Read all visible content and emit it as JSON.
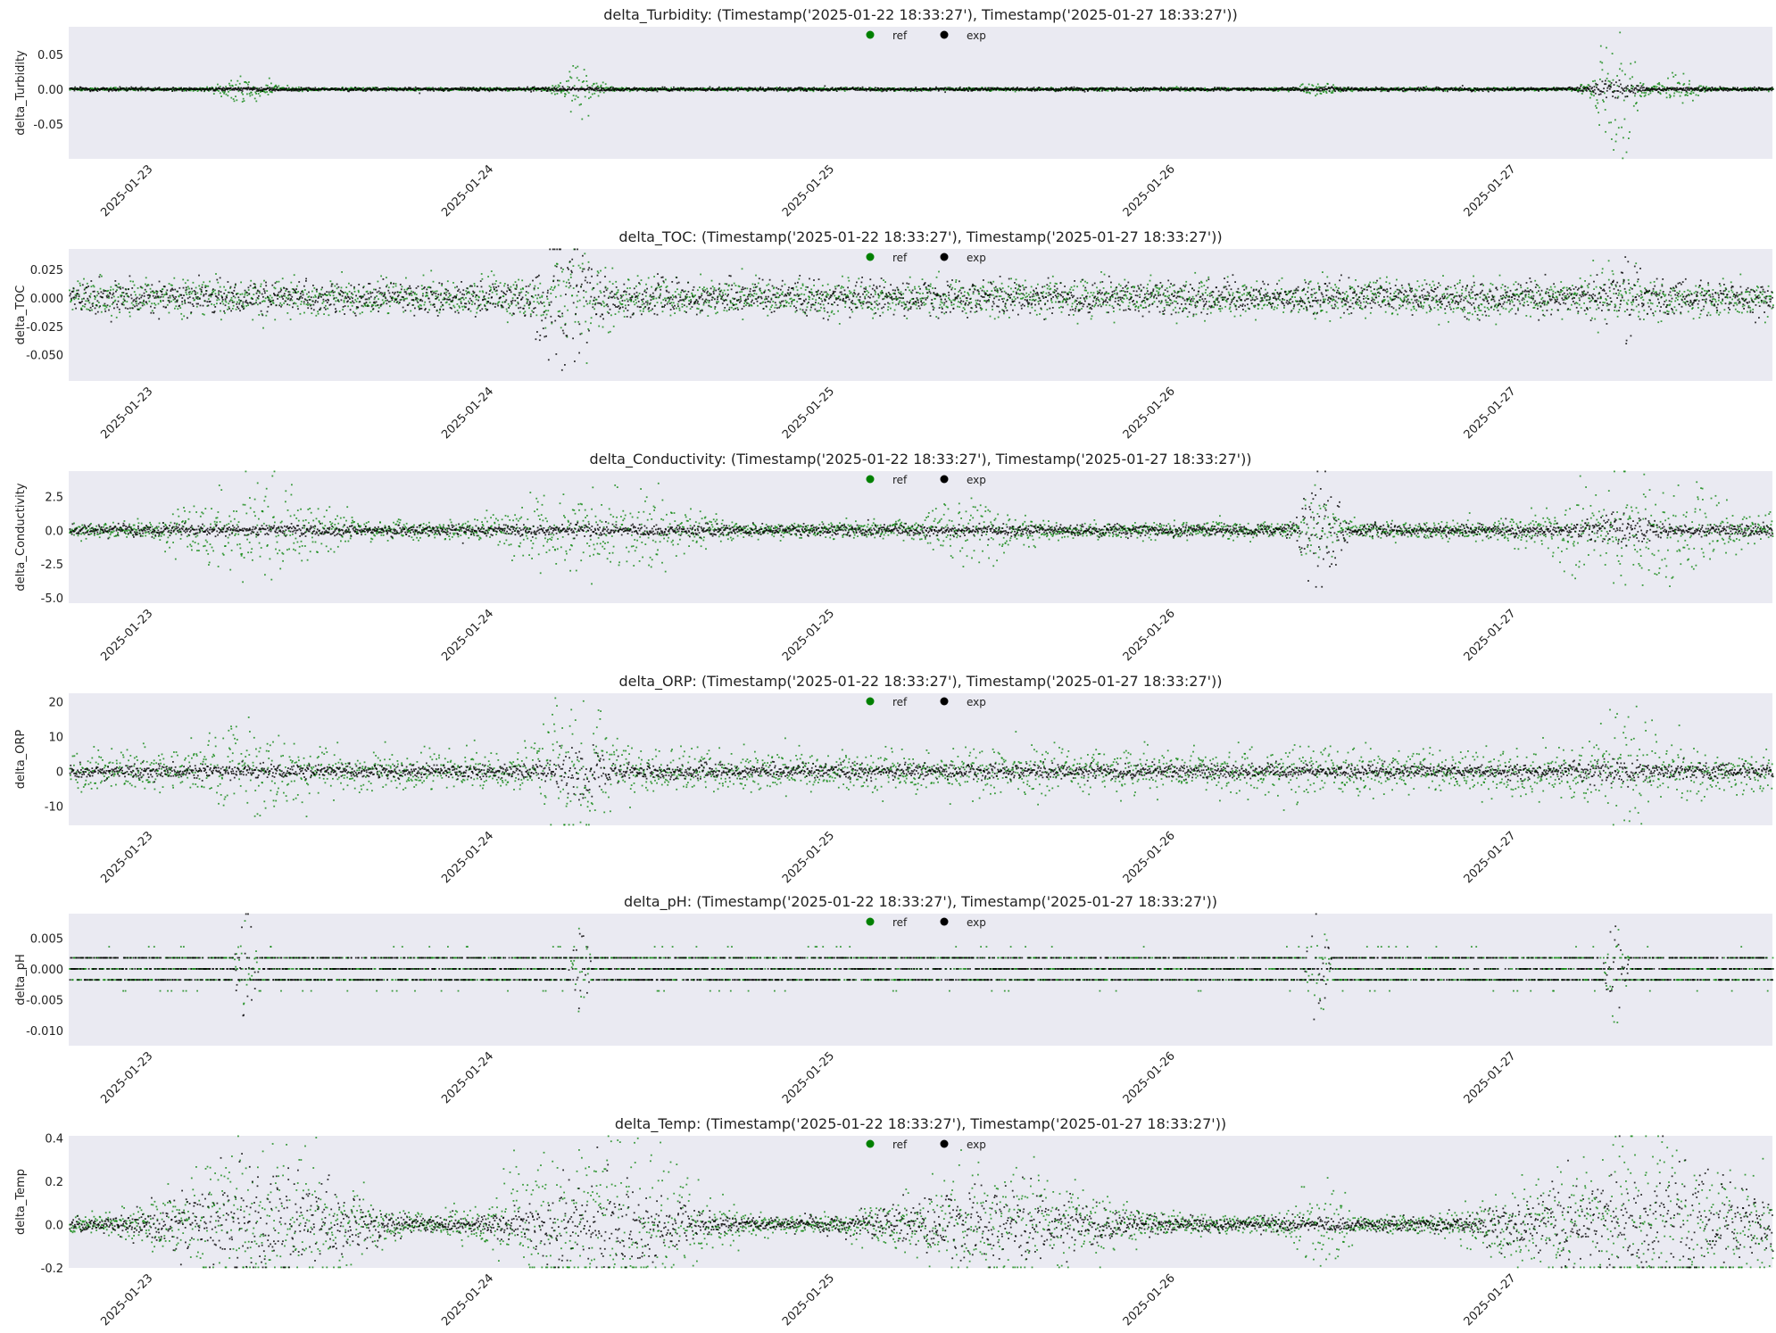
{
  "colors": {
    "ref": "#008000",
    "exp": "#000000",
    "panel_bg": "#eaeaf2"
  },
  "chart_data": [
    {
      "type": "scatter",
      "title": "delta_Turbidity: (Timestamp('2025-01-22 18:33:27'), Timestamp('2025-01-27 18:33:27'))",
      "ylabel": "delta_Turbidity",
      "xlim": [
        "2025-01-22T18:33:27",
        "2025-01-27T18:33:27"
      ],
      "ylim": [
        -0.1,
        0.09
      ],
      "yticks": [
        -0.05,
        0.0,
        0.05
      ],
      "ytick_labels": [
        "-0.05",
        "0.00",
        "0.05"
      ],
      "xtick_labels": [
        "2025-01-23",
        "2025-01-24",
        "2025-01-25",
        "2025-01-26",
        "2025-01-27"
      ],
      "legend": [
        "ref",
        "exp"
      ],
      "legend_position": "upper-center",
      "grid": false,
      "series": [
        {
          "name": "ref",
          "baseline": 0.0,
          "bursts": [
            {
              "t": "2025-01-23T07:00:00",
              "width_h": 3,
              "amp": 0.016
            },
            {
              "t": "2025-01-24T06:30:00",
              "width_h": 2,
              "amp": 0.035
            },
            {
              "t": "2025-01-26T10:30:00",
              "width_h": 2,
              "amp": 0.01
            },
            {
              "t": "2025-01-27T07:30:00",
              "width_h": 2,
              "amp": 0.09
            },
            {
              "t": "2025-01-27T12:00:00",
              "width_h": 2,
              "amp": 0.02
            }
          ],
          "noise": 0.001
        },
        {
          "name": "exp",
          "baseline": 0.0,
          "bursts": [
            {
              "t": "2025-01-27T07:30:00",
              "width_h": 3,
              "amp": 0.01
            }
          ],
          "noise": 0.0012
        }
      ]
    },
    {
      "type": "scatter",
      "title": "delta_TOC: (Timestamp('2025-01-22 18:33:27'), Timestamp('2025-01-27 18:33:27'))",
      "ylabel": "delta_TOC",
      "xlim": [
        "2025-01-22T18:33:27",
        "2025-01-27T18:33:27"
      ],
      "ylim": [
        -0.073,
        0.043
      ],
      "yticks": [
        -0.05,
        -0.025,
        0.0,
        0.025
      ],
      "ytick_labels": [
        "-0.050",
        "-0.025",
        "0.000",
        "0.025"
      ],
      "xtick_labels": [
        "2025-01-23",
        "2025-01-24",
        "2025-01-25",
        "2025-01-26",
        "2025-01-27"
      ],
      "legend": [
        "ref",
        "exp"
      ],
      "legend_position": "upper-center",
      "grid": false,
      "series": [
        {
          "name": "ref",
          "baseline": 0.0,
          "bursts": [
            {
              "t": "2025-01-24T06:30:00",
              "width_h": 3,
              "amp": 0.045
            },
            {
              "t": "2025-01-27T07:00:00",
              "width_h": 3,
              "amp": 0.02
            }
          ],
          "noise": 0.008
        },
        {
          "name": "exp",
          "baseline": 0.0,
          "bursts": [
            {
              "t": "2025-01-24T05:30:00",
              "width_h": 3,
              "amp": 0.07
            },
            {
              "t": "2025-01-27T08:00:00",
              "width_h": 2,
              "amp": 0.03
            }
          ],
          "noise": 0.007
        }
      ]
    },
    {
      "type": "scatter",
      "title": "delta_Conductivity: (Timestamp('2025-01-22 18:33:27'), Timestamp('2025-01-27 18:33:27'))",
      "ylabel": "delta_Conductivity",
      "xlim": [
        "2025-01-22T18:33:27",
        "2025-01-27T18:33:27"
      ],
      "ylim": [
        -5.4,
        4.4
      ],
      "yticks": [
        -5.0,
        -2.5,
        0.0,
        2.5
      ],
      "ytick_labels": [
        "-5.0",
        "-2.5",
        "0.0",
        "2.5"
      ],
      "xtick_labels": [
        "2025-01-23",
        "2025-01-24",
        "2025-01-25",
        "2025-01-26",
        "2025-01-27"
      ],
      "legend": [
        "ref",
        "exp"
      ],
      "legend_position": "upper-center",
      "grid": false,
      "series": [
        {
          "name": "ref",
          "baseline": 0.0,
          "bursts": [
            {
              "t": "2025-01-23T07:30:00",
              "width_h": 8,
              "amp": 3.5
            },
            {
              "t": "2025-01-24T08:00:00",
              "width_h": 10,
              "amp": 3.0
            },
            {
              "t": "2025-01-25T10:00:00",
              "width_h": 6,
              "amp": 2.0
            },
            {
              "t": "2025-01-26T10:30:00",
              "width_h": 2,
              "amp": 3.0
            },
            {
              "t": "2025-01-27T09:00:00",
              "width_h": 10,
              "amp": 3.5
            }
          ],
          "noise": 0.3
        },
        {
          "name": "exp",
          "baseline": 0.0,
          "bursts": [
            {
              "t": "2025-01-26T10:30:00",
              "width_h": 2,
              "amp": 4.5
            },
            {
              "t": "2025-01-27T07:30:00",
              "width_h": 4,
              "amp": 1.0
            }
          ],
          "noise": 0.2
        }
      ]
    },
    {
      "type": "scatter",
      "title": "delta_ORP: (Timestamp('2025-01-22 18:33:27'), Timestamp('2025-01-27 18:33:27'))",
      "ylabel": "delta_ORP",
      "xlim": [
        "2025-01-22T18:33:27",
        "2025-01-27T18:33:27"
      ],
      "ylim": [
        -15.5,
        22.5
      ],
      "yticks": [
        -10,
        0,
        10,
        20
      ],
      "ytick_labels": [
        "-10",
        "0",
        "10",
        "20"
      ],
      "xtick_labels": [
        "2025-01-23",
        "2025-01-24",
        "2025-01-25",
        "2025-01-26",
        "2025-01-27"
      ],
      "legend": [
        "ref",
        "exp"
      ],
      "legend_position": "upper-center",
      "grid": false,
      "series": [
        {
          "name": "ref",
          "baseline": 0.0,
          "bursts": [
            {
              "t": "2025-01-23T07:00:00",
              "width_h": 6,
              "amp": 10
            },
            {
              "t": "2025-01-24T06:30:00",
              "width_h": 4,
              "amp": 20
            },
            {
              "t": "2025-01-25T13:00:00",
              "width_h": 6,
              "amp": 5
            },
            {
              "t": "2025-01-26T09:30:00",
              "width_h": 4,
              "amp": 7
            },
            {
              "t": "2025-01-27T08:00:00",
              "width_h": 6,
              "amp": 12
            }
          ],
          "noise": 3.0
        },
        {
          "name": "exp",
          "baseline": 0.0,
          "bursts": [
            {
              "t": "2025-01-24T06:30:00",
              "width_h": 3,
              "amp": 8
            },
            {
              "t": "2025-01-27T08:00:00",
              "width_h": 4,
              "amp": 3
            }
          ],
          "noise": 1.0
        }
      ]
    },
    {
      "type": "scatter",
      "title": "delta_pH: (Timestamp('2025-01-22 18:33:27'), Timestamp('2025-01-27 18:33:27'))",
      "ylabel": "delta_pH",
      "xlim": [
        "2025-01-22T18:33:27",
        "2025-01-27T18:33:27"
      ],
      "ylim": [
        -0.0125,
        0.009
      ],
      "yticks": [
        -0.01,
        -0.005,
        0.0,
        0.005
      ],
      "ytick_labels": [
        "-0.010",
        "-0.005",
        "0.000",
        "0.005"
      ],
      "xtick_labels": [
        "2025-01-23",
        "2025-01-24",
        "2025-01-25",
        "2025-01-26",
        "2025-01-27"
      ],
      "legend": [
        "ref",
        "exp"
      ],
      "legend_position": "upper-center",
      "grid": false,
      "series": [
        {
          "name": "ref",
          "levels": [
            -0.0018,
            0.0,
            0.0018,
            0.0036,
            -0.0036
          ],
          "bursts": [
            {
              "t": "2025-01-23T07:00:00",
              "width_h": 1,
              "amp": 0.0095
            },
            {
              "t": "2025-01-24T06:30:00",
              "width_h": 1,
              "amp": 0.0075
            },
            {
              "t": "2025-01-26T10:30:00",
              "width_h": 1,
              "amp": 0.0125
            },
            {
              "t": "2025-01-27T07:30:00",
              "width_h": 1,
              "amp": 0.01
            }
          ]
        },
        {
          "name": "exp",
          "levels": [
            -0.0018,
            0.0,
            0.0018
          ],
          "bursts": [
            {
              "t": "2025-01-23T07:00:00",
              "width_h": 1,
              "amp": 0.0095
            },
            {
              "t": "2025-01-24T06:30:00",
              "width_h": 1,
              "amp": 0.0075
            },
            {
              "t": "2025-01-26T10:30:00",
              "width_h": 1,
              "amp": 0.0125
            },
            {
              "t": "2025-01-27T07:30:00",
              "width_h": 1,
              "amp": 0.01
            }
          ]
        }
      ]
    },
    {
      "type": "scatter",
      "title": "delta_Temp: (Timestamp('2025-01-22 18:33:27'), Timestamp('2025-01-27 18:33:27'))",
      "ylabel": "delta_Temp",
      "xlim": [
        "2025-01-22T18:33:27",
        "2025-01-27T18:33:27"
      ],
      "ylim": [
        -0.2,
        0.41
      ],
      "yticks": [
        -0.2,
        0.0,
        0.2,
        0.4
      ],
      "ytick_labels": [
        "-0.2",
        "0.0",
        "0.2",
        "0.4"
      ],
      "xtick_labels": [
        "2025-01-23",
        "2025-01-24",
        "2025-01-25",
        "2025-01-26",
        "2025-01-27"
      ],
      "legend": [
        "ref",
        "exp"
      ],
      "legend_position": "upper-center",
      "grid": false,
      "series": [
        {
          "name": "ref",
          "baseline": 0.0,
          "bursts": [
            {
              "t": "2025-01-23T08:30:00",
              "width_h": 10,
              "amp": 0.35
            },
            {
              "t": "2025-01-24T08:00:00",
              "width_h": 10,
              "amp": 0.4
            },
            {
              "t": "2025-01-25T12:00:00",
              "width_h": 12,
              "amp": 0.25
            },
            {
              "t": "2025-01-26T10:30:00",
              "width_h": 3,
              "amp": 0.2
            },
            {
              "t": "2025-01-27T10:00:00",
              "width_h": 14,
              "amp": 0.4
            }
          ],
          "noise": 0.02
        },
        {
          "name": "exp",
          "baseline": 0.0,
          "bursts": [
            {
              "t": "2025-01-23T08:30:00",
              "width_h": 10,
              "amp": 0.25
            },
            {
              "t": "2025-01-24T08:00:00",
              "width_h": 8,
              "amp": 0.2
            },
            {
              "t": "2025-01-25T12:00:00",
              "width_h": 12,
              "amp": 0.15
            },
            {
              "t": "2025-01-27T10:00:00",
              "width_h": 14,
              "amp": 0.25
            }
          ],
          "noise": 0.015
        }
      ]
    }
  ]
}
